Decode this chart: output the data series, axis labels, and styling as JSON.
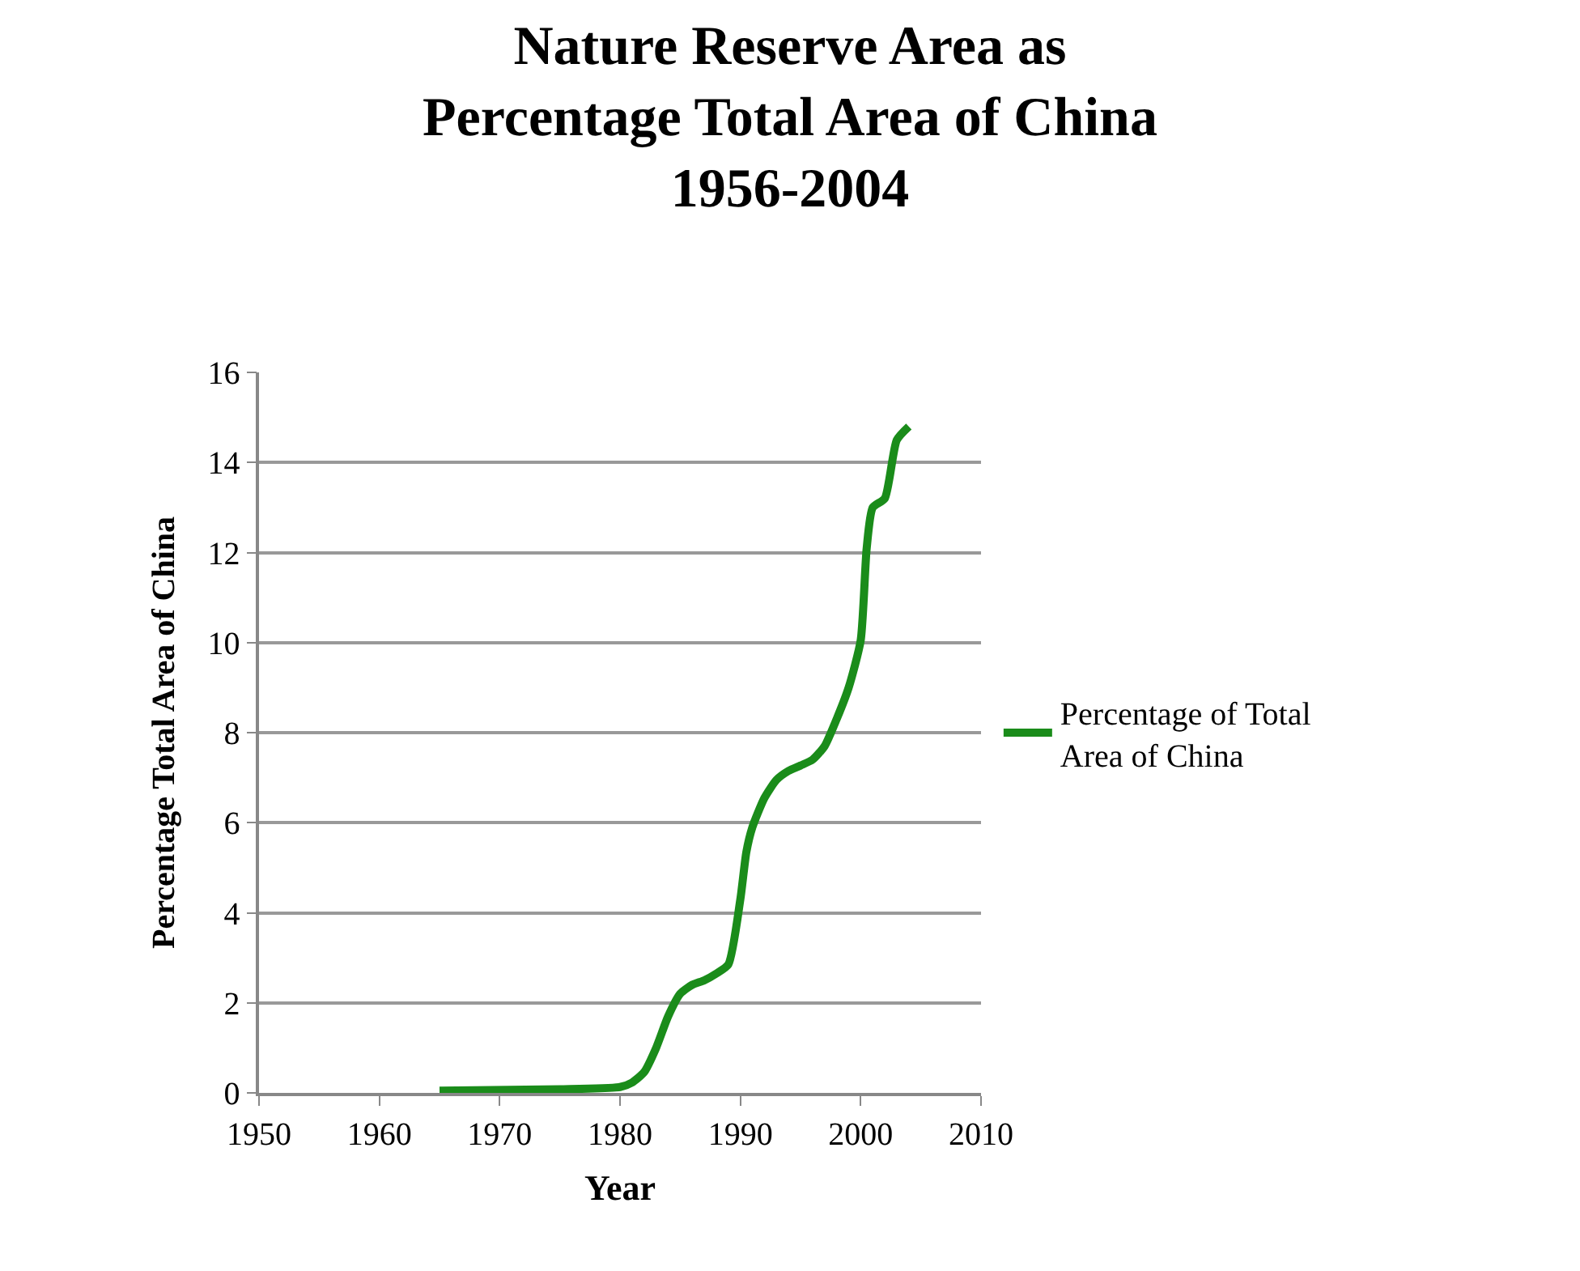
{
  "chart_data": {
    "type": "line",
    "title": "Nature Reserve Area as\nPercentage Total Area of China\n1956-2004",
    "xlabel": "Year",
    "ylabel": "Percentage Total Area of China",
    "x": [
      1965,
      1975,
      1980,
      1981,
      1982,
      1983,
      1984,
      1985,
      1986,
      1987,
      1988,
      1989,
      1990,
      1990.5,
      1991,
      1992,
      1993,
      1994,
      1995,
      1996,
      1997,
      1998,
      1999,
      2000,
      2000.5,
      2001,
      2002,
      2003,
      2004
    ],
    "series": [
      {
        "name": "Percentage of Total Area of China",
        "color": "#1a8c1a",
        "values": [
          0.05,
          0.08,
          0.13,
          0.23,
          0.46,
          1.0,
          1.7,
          2.2,
          2.4,
          2.5,
          2.65,
          2.85,
          4.3,
          5.35,
          5.9,
          6.55,
          6.95,
          7.15,
          7.27,
          7.4,
          7.7,
          8.3,
          9.0,
          10.05,
          12.1,
          13.0,
          13.2,
          14.5,
          14.8
        ]
      }
    ],
    "xlim": [
      1950,
      2010
    ],
    "xticks": [
      1950,
      1960,
      1970,
      1980,
      1990,
      2000,
      2010
    ],
    "ylim": [
      0,
      16
    ],
    "yticks": [
      0,
      2,
      4,
      6,
      8,
      10,
      12,
      14,
      16
    ],
    "grid": "y",
    "legend": "right",
    "marker": "none",
    "line_style": "solid"
  }
}
